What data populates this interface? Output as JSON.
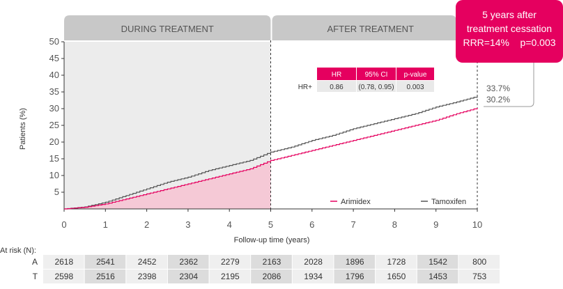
{
  "chart_data": {
    "type": "line",
    "xlabel": "Follow-up time (years)",
    "ylabel": "Patients (%)",
    "xlim": [
      0,
      10
    ],
    "ylim": [
      0,
      50
    ],
    "x_ticks": [
      "0",
      "1",
      "2",
      "3",
      "4",
      "5",
      "6",
      "7",
      "8",
      "9",
      "10"
    ],
    "y_ticks": [
      "5",
      "10",
      "15",
      "20",
      "25",
      "30",
      "35",
      "40",
      "45",
      "50"
    ],
    "phases": [
      {
        "label": "DURING TREATMENT",
        "range": [
          0,
          5
        ]
      },
      {
        "label": "AFTER TREATMENT",
        "range": [
          5,
          10
        ]
      }
    ],
    "series": [
      {
        "name": "Arimidex",
        "color": "#e5005f",
        "x": [
          0,
          0.5,
          1,
          1.5,
          2,
          2.5,
          3,
          3.5,
          4,
          4.5,
          5,
          5.5,
          6,
          6.5,
          7,
          7.5,
          8,
          8.5,
          9,
          9.5,
          10
        ],
        "y": [
          0,
          0.5,
          1.5,
          3.0,
          4.5,
          6.0,
          7.5,
          9.0,
          10.5,
          12.0,
          14.5,
          16.0,
          17.5,
          19.0,
          20.5,
          22.0,
          23.5,
          25.0,
          26.5,
          28.5,
          30.2
        ]
      },
      {
        "name": "Tamoxifen",
        "color": "#555555",
        "x": [
          0,
          0.5,
          1,
          1.5,
          2,
          2.5,
          3,
          3.5,
          4,
          4.5,
          5,
          5.5,
          6,
          6.5,
          7,
          7.5,
          8,
          8.5,
          9,
          9.5,
          10
        ],
        "y": [
          0,
          0.6,
          2.0,
          4.0,
          6.0,
          8.0,
          9.5,
          11.5,
          13.0,
          14.5,
          17.0,
          18.5,
          20.5,
          22.0,
          24.0,
          25.5,
          27.0,
          28.5,
          30.5,
          32.0,
          33.7
        ]
      }
    ],
    "end_labels": [
      "33.7%",
      "30.2%"
    ],
    "callout": {
      "line1": "5 years after",
      "line2": "treatment cessation",
      "line3": "RRR=14%    p=0.003"
    },
    "hr_table": {
      "headers": [
        "HR",
        "95% CI",
        "p-value"
      ],
      "row_label": "HR+",
      "values": [
        "0.86",
        "(0.78, 0.95)",
        "0.003"
      ]
    },
    "at_risk": {
      "label": "At risk (N):",
      "rows": [
        {
          "label": "A",
          "values": [
            "2618",
            "2541",
            "2452",
            "2362",
            "2279",
            "2163",
            "2028",
            "1896",
            "1728",
            "1542",
            "800"
          ]
        },
        {
          "label": "T",
          "values": [
            "2598",
            "2516",
            "2398",
            "2304",
            "2195",
            "2086",
            "1934",
            "1796",
            "1650",
            "1453",
            "753"
          ]
        }
      ]
    },
    "colors": {
      "accent": "#e5005f",
      "tamoxifen": "#555555",
      "phase_bar": "#c8c8c8",
      "during_bg": "#ececec",
      "arimidex_fill": "#f5c9d6"
    }
  }
}
